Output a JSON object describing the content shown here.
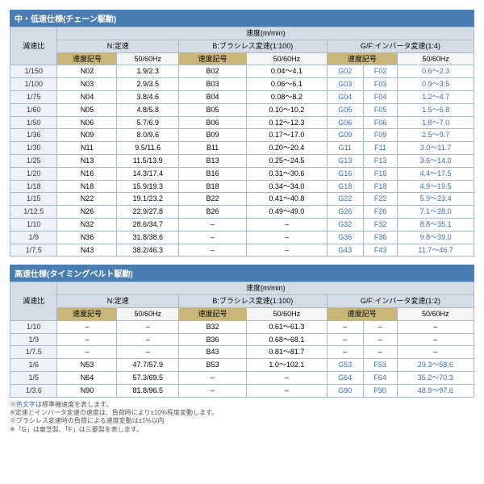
{
  "tables": [
    {
      "title": "中・低速仕様(チェーン駆動)",
      "gf": "G/F:インバータ変速(1:4)",
      "rows": [
        {
          "r": "1/150",
          "n": "N02",
          "nv": "1.9/2.3",
          "b": "B02",
          "bv": "0.04～4.1",
          "g": "G02",
          "f": "F02",
          "gv": "0.6～2.3"
        },
        {
          "r": "1/100",
          "n": "N03",
          "nv": "2.9/3.5",
          "b": "B03",
          "bv": "0.06～6.1",
          "g": "G03",
          "f": "F03",
          "gv": "0.9～3.5"
        },
        {
          "r": "1/75",
          "n": "N04",
          "nv": "3.8/4.6",
          "b": "B04",
          "bv": "0.08～8.2",
          "g": "G04",
          "f": "F04",
          "gv": "1.2～4.7"
        },
        {
          "r": "1/60",
          "n": "N05",
          "nv": "4.8/5.8",
          "b": "B05",
          "bv": "0.10～10.2",
          "g": "G05",
          "f": "F05",
          "gv": "1.5～5.8"
        },
        {
          "r": "1/50",
          "n": "N06",
          "nv": "5.7/6.9",
          "b": "B06",
          "bv": "0.12～12.3",
          "g": "G06",
          "f": "F06",
          "gv": "1.8～7.0"
        },
        {
          "r": "1/36",
          "n": "N09",
          "nv": "8.0/9.6",
          "b": "B09",
          "bv": "0.17～17.0",
          "g": "G09",
          "f": "F09",
          "gv": "2.5～9.7"
        },
        {
          "r": "1/30",
          "n": "N11",
          "nv": "9.5/11.6",
          "b": "B11",
          "bv": "0.20～20.4",
          "g": "G11",
          "f": "F11",
          "gv": "3.0～11.7"
        },
        {
          "r": "1/25",
          "n": "N13",
          "nv": "11.5/13.9",
          "b": "B13",
          "bv": "0.25～24.5",
          "g": "G13",
          "f": "F13",
          "gv": "3.6～14.0"
        },
        {
          "r": "1/20",
          "n": "N16",
          "nv": "14.3/17.4",
          "b": "B16",
          "bv": "0.31～30.6",
          "g": "G16",
          "f": "F16",
          "gv": "4.4～17.5"
        },
        {
          "r": "1/18",
          "n": "N18",
          "nv": "15.9/19.3",
          "b": "B18",
          "bv": "0.34～34.0",
          "g": "G18",
          "f": "F18",
          "gv": "4.9～19.5"
        },
        {
          "r": "1/15",
          "n": "N22",
          "nv": "19.1/23.2",
          "b": "B22",
          "bv": "0.41～40.8",
          "g": "G22",
          "f": "F22",
          "gv": "5.9～23.4"
        },
        {
          "r": "1/12.5",
          "n": "N26",
          "nv": "22.9/27.8",
          "b": "B26",
          "bv": "0.49～49.0",
          "g": "G26",
          "f": "F26",
          "gv": "7.1～28.0"
        },
        {
          "r": "1/10",
          "n": "N32",
          "nv": "28.6/34.7",
          "b": "–",
          "bv": "–",
          "g": "G32",
          "f": "F32",
          "gv": "8.8～35.1"
        },
        {
          "r": "1/9",
          "n": "N36",
          "nv": "31.8/38.6",
          "b": "–",
          "bv": "–",
          "g": "G36",
          "f": "F36",
          "gv": "9.8～39.0"
        },
        {
          "r": "1/7.5",
          "n": "N43",
          "nv": "38.2/46.3",
          "b": "–",
          "bv": "–",
          "g": "G43",
          "f": "F43",
          "gv": "11.7～46.7"
        }
      ]
    },
    {
      "title": "高速仕様(タイミングベルト駆動)",
      "gf": "G/F:インバータ変速(1:2)",
      "rows": [
        {
          "r": "1/10",
          "n": "–",
          "nv": "–",
          "b": "B32",
          "bv": "0.61～61.3",
          "g": "–",
          "f": "–",
          "gv": "–"
        },
        {
          "r": "1/9",
          "n": "–",
          "nv": "–",
          "b": "B36",
          "bv": "0.68～68.1",
          "g": "–",
          "f": "–",
          "gv": "–"
        },
        {
          "r": "1/7.5",
          "n": "–",
          "nv": "–",
          "b": "B43",
          "bv": "0.81～81.7",
          "g": "–",
          "f": "–",
          "gv": "–"
        },
        {
          "r": "1/6",
          "n": "N53",
          "nv": "47.7/57.9",
          "b": "B53",
          "bv": "1.0～102.1",
          "g": "G53",
          "f": "F53",
          "gv": "29.3～58.6"
        },
        {
          "r": "1/5",
          "n": "N64",
          "nv": "57.3/69.5",
          "b": "–",
          "bv": "–",
          "g": "G64",
          "f": "F64",
          "gv": "35.2～70.3"
        },
        {
          "r": "1/3.6",
          "n": "N90",
          "nv": "81.8/96.5",
          "b": "–",
          "bv": "–",
          "g": "G90",
          "f": "F90",
          "gv": "48.9～97.6"
        }
      ]
    }
  ],
  "h": {
    "ratio": "減速比",
    "speed": "速度(m/min)",
    "n": "N:定速",
    "b": "B:ブラシレス変速(1:100)",
    "code": "速度記号",
    "hz": "50/60Hz"
  },
  "notes": [
    "※色文字は標準機速度を表します。",
    "※定速とインバータ変速の速度は、負荷時により±10%程度変動します。",
    "※ブラシレス変速時の負荷による速度変動は±1%以内",
    "※「G」は東芝製、「F」は三菱製を表します。"
  ]
}
